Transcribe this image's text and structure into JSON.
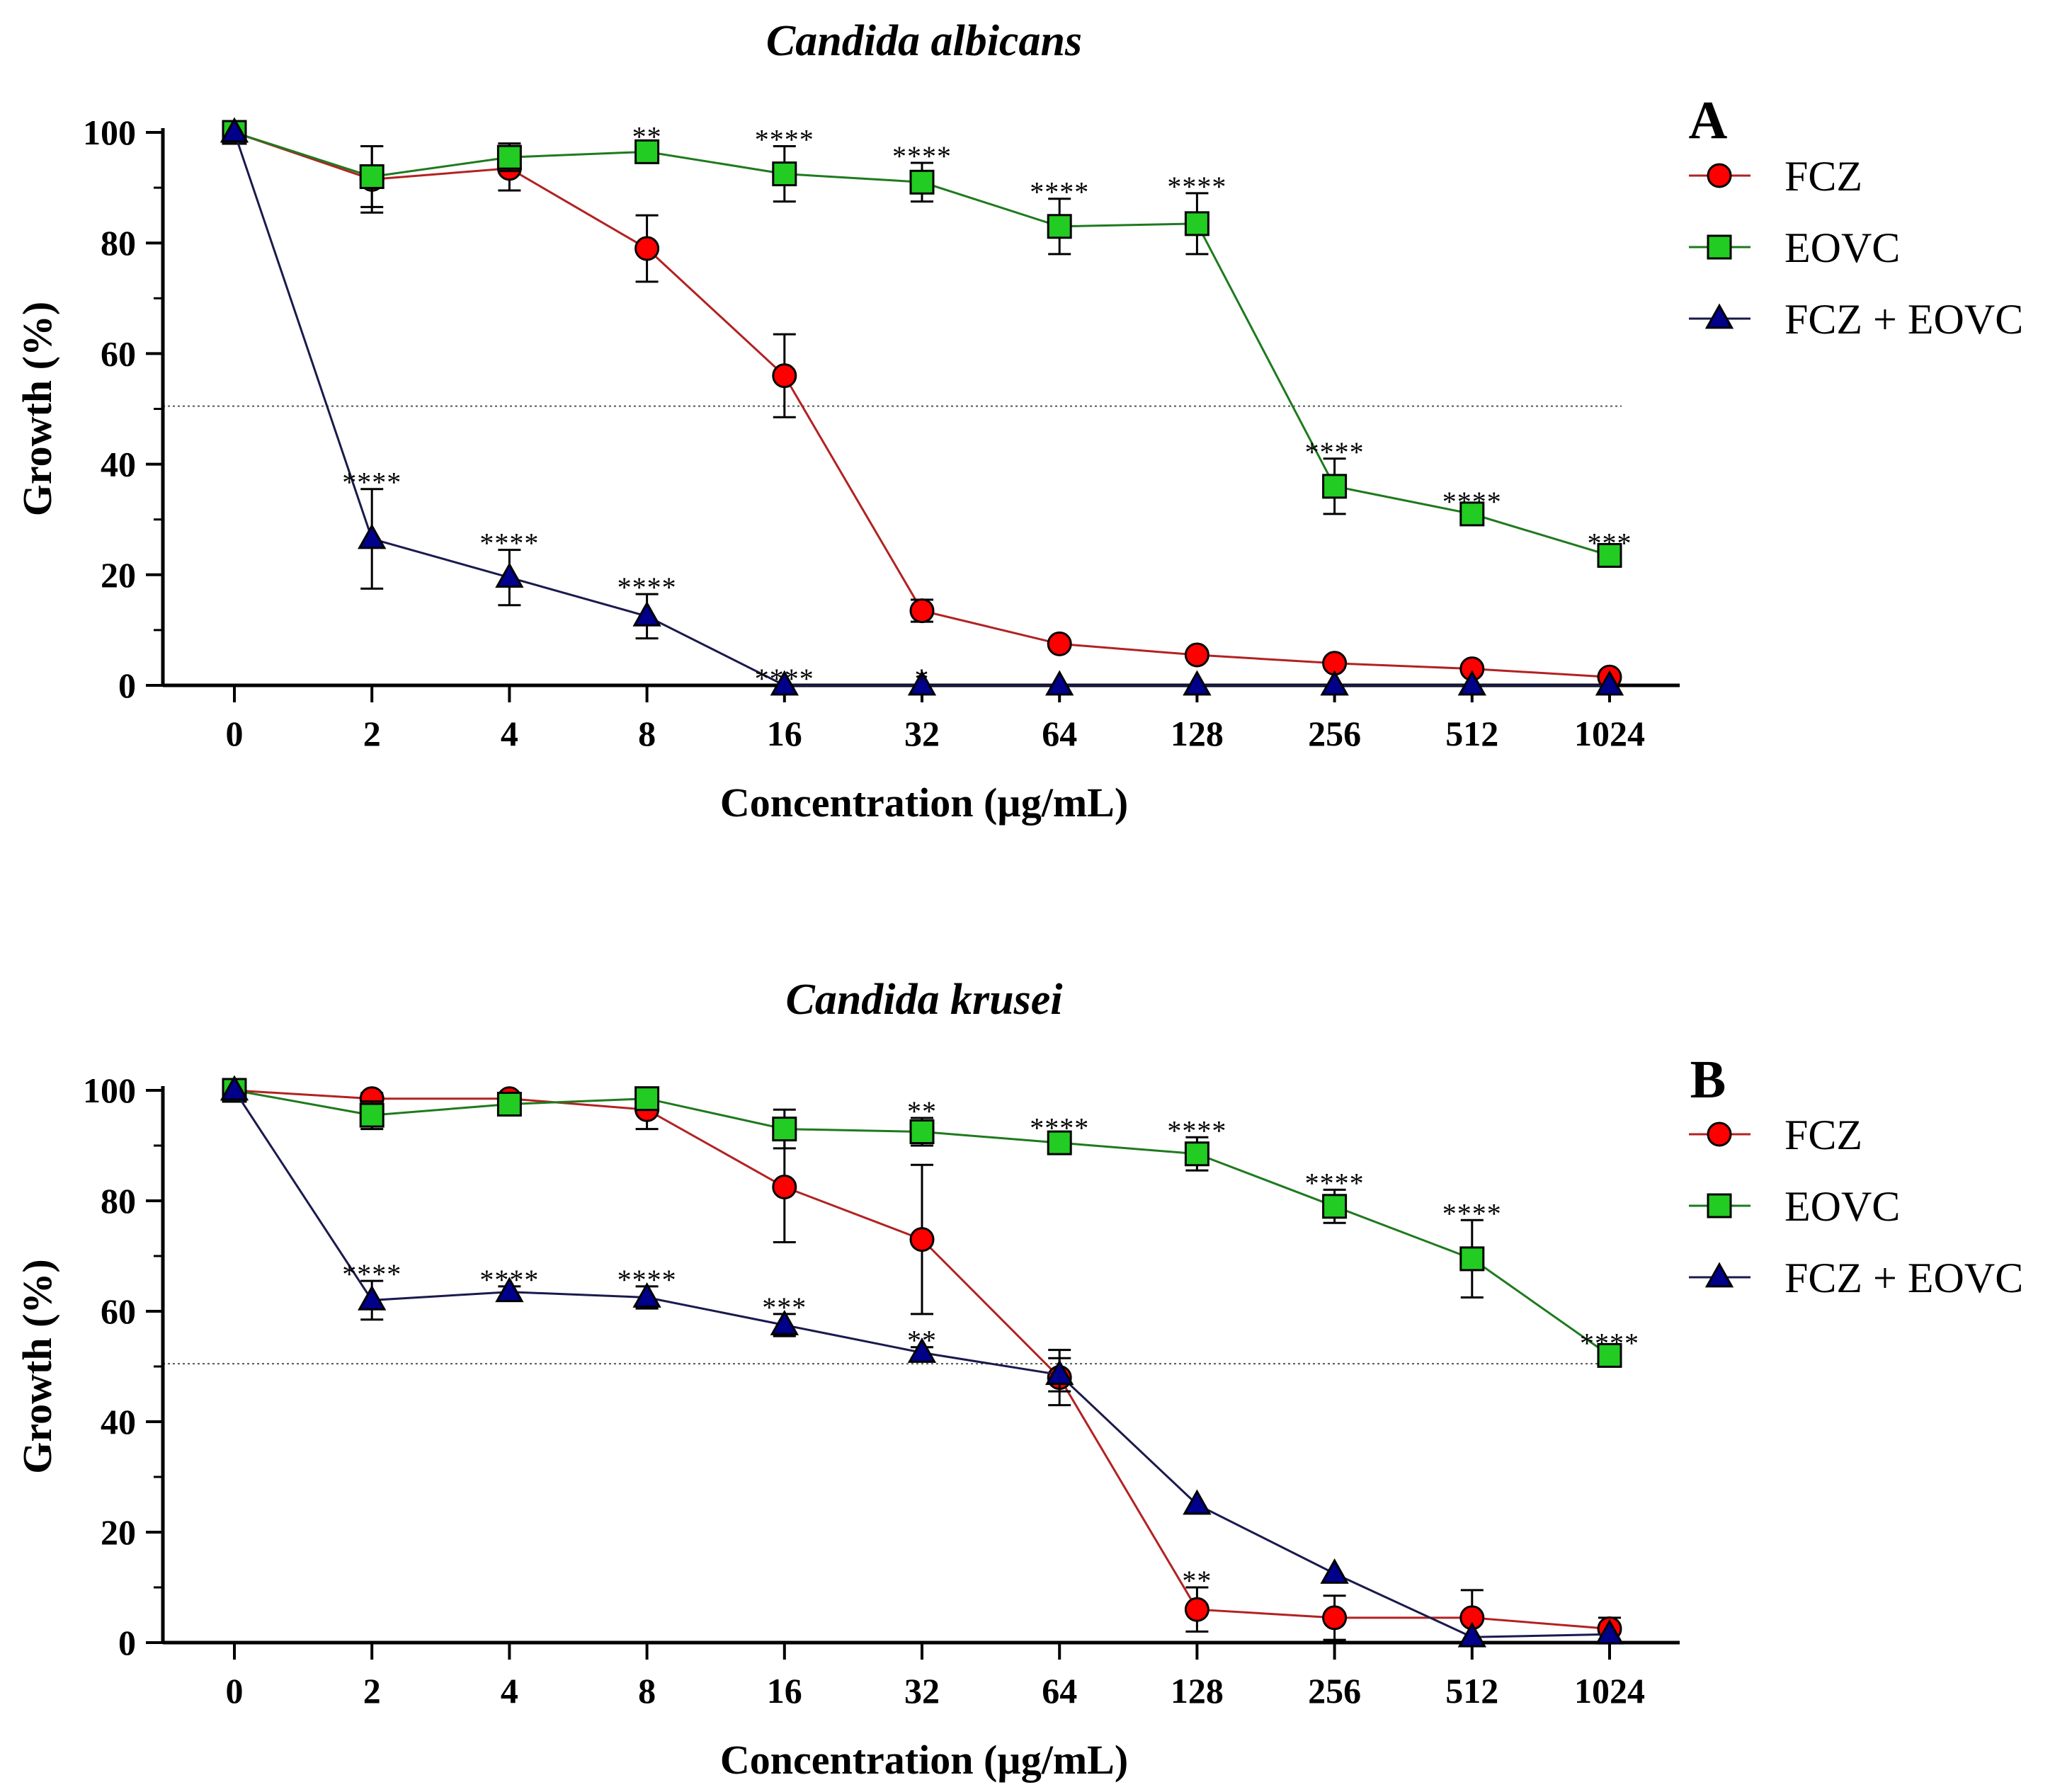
{
  "colors": {
    "fcz_fill": "#ff0000",
    "eovc_fill": "#22cc22",
    "combo_fill": "#00008b",
    "fcz_line": "#b22222",
    "eovc_line": "#1e7a1e",
    "combo_line": "#1a1a4d"
  },
  "chart_data": [
    {
      "type": "line",
      "title": "Candida albicans",
      "panel": "A",
      "xlabel": "Concentration (µg/mL)",
      "ylabel": "Growth (%)",
      "ylim": [
        0,
        100
      ],
      "yticks": [
        "0",
        "20",
        "40",
        "60",
        "80",
        "100"
      ],
      "categories": [
        "0",
        "2",
        "4",
        "8",
        "16",
        "32",
        "64",
        "128",
        "256",
        "512",
        "1024"
      ],
      "reference_line": 50.5,
      "legend_position": "right",
      "series": [
        {
          "name": "FCZ",
          "marker": "circle",
          "values": [
            100,
            91.5,
            93.5,
            79,
            56,
            13.5,
            7.5,
            5.5,
            4,
            3,
            1.5
          ],
          "errors": [
            0,
            6,
            4,
            6,
            7.5,
            2,
            0,
            0,
            0,
            0,
            0
          ],
          "sig": [
            "",
            "",
            "",
            "",
            "",
            "",
            "",
            "",
            "",
            "",
            ""
          ]
        },
        {
          "name": "EOVC",
          "marker": "square",
          "values": [
            100,
            92,
            95.5,
            96.5,
            92.5,
            91,
            83,
            83.5,
            36,
            31,
            23.5
          ],
          "errors": [
            0,
            5.5,
            2.5,
            1.5,
            5,
            3.5,
            5,
            5.5,
            5,
            1,
            1
          ],
          "sig": [
            "",
            "",
            "",
            "**",
            "****",
            "****",
            "****",
            "****",
            "****",
            "****",
            "***"
          ]
        },
        {
          "name": "FCZ + EOVC",
          "marker": "triangle",
          "values": [
            100,
            26.5,
            19.5,
            12.5,
            0,
            0,
            0,
            0,
            0,
            0,
            0
          ],
          "errors": [
            0,
            9,
            5,
            4,
            0,
            0,
            0,
            0,
            0,
            0,
            0
          ],
          "sig": [
            "",
            "****",
            "****",
            "****",
            "****",
            "*",
            "",
            "",
            "",
            "",
            ""
          ]
        }
      ]
    },
    {
      "type": "line",
      "title": "Candida krusei",
      "panel": "B",
      "xlabel": "Concentration (µg/mL)",
      "ylabel": "Growth (%)",
      "ylim": [
        0,
        100
      ],
      "yticks": [
        "0",
        "20",
        "40",
        "60",
        "80",
        "100"
      ],
      "categories": [
        "0",
        "2",
        "4",
        "8",
        "16",
        "32",
        "64",
        "128",
        "256",
        "512",
        "1024"
      ],
      "reference_line": 50.5,
      "legend_position": "right",
      "series": [
        {
          "name": "FCZ",
          "marker": "circle",
          "values": [
            100,
            98.5,
            98.5,
            96.5,
            82.5,
            73,
            48,
            6,
            4.5,
            4.5,
            2.5
          ],
          "errors": [
            0,
            1,
            1,
            3.5,
            10,
            13.5,
            5,
            4,
            4,
            5,
            2
          ],
          "sig": [
            "",
            "",
            "",
            "",
            "",
            "",
            "",
            "**",
            "",
            "",
            ""
          ]
        },
        {
          "name": "EOVC",
          "marker": "square",
          "values": [
            100,
            95.5,
            97.5,
            98.5,
            93,
            92.5,
            90.5,
            88.5,
            79,
            69.5,
            52
          ],
          "errors": [
            0,
            2.5,
            1.5,
            1.5,
            3.5,
            2.5,
            1.5,
            3,
            3,
            7,
            1
          ],
          "sig": [
            "",
            "",
            "",
            "",
            "",
            "**",
            "****",
            "****",
            "****",
            "****",
            "****"
          ]
        },
        {
          "name": "FCZ + EOVC",
          "marker": "triangle",
          "values": [
            100,
            62,
            63.5,
            62.5,
            57.5,
            52.5,
            48.5,
            25,
            12.5,
            1,
            1.5
          ],
          "errors": [
            0,
            3.5,
            1,
            2,
            2,
            1,
            3,
            0,
            0,
            0,
            0
          ],
          "sig": [
            "",
            "****",
            "****",
            "****",
            "***",
            "**",
            "",
            "",
            "",
            "",
            ""
          ]
        }
      ]
    }
  ]
}
